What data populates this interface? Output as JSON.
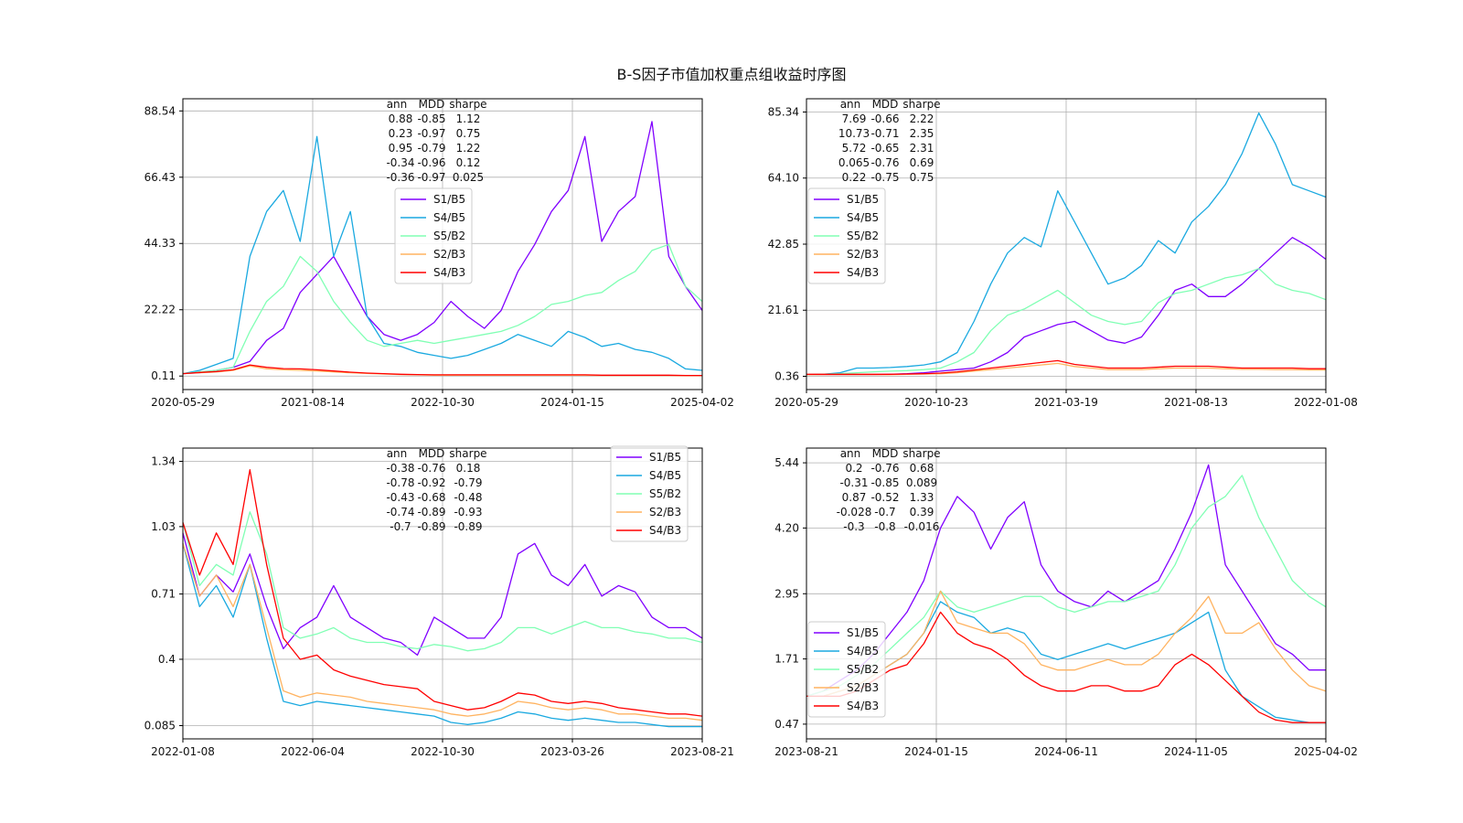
{
  "title": "B-S因子市值加权重点组收益时序图",
  "colors": {
    "S1/B5": "#8000ff",
    "S4/B5": "#1aa9e0",
    "S5/B2": "#80ffb4",
    "S2/B3": "#ffb360",
    "S4/B3": "#ff0000"
  },
  "chart_data": [
    {
      "type": "line",
      "x_ticks": [
        "2020-05-29",
        "2021-08-14",
        "2022-10-30",
        "2024-01-15",
        "2025-04-02"
      ],
      "y_ticks": [
        "0.11",
        "22.22",
        "44.33",
        "66.43",
        "88.54"
      ],
      "ylim": [
        -4.4,
        92.6
      ],
      "grid": true,
      "legend_position": "upper-center",
      "stats_header": [
        "ann",
        "MDD",
        "sharpe"
      ],
      "stats": [
        [
          "0.88",
          "-0.85",
          "1.12"
        ],
        [
          "0.23",
          "-0.97",
          "0.75"
        ],
        [
          "0.95",
          "-0.79",
          "1.22"
        ],
        [
          "-0.34",
          "-0.96",
          "0.12"
        ],
        [
          "-0.36",
          "-0.97",
          "0.025"
        ]
      ],
      "series": [
        {
          "name": "S1/B5",
          "values": [
            0.9,
            1.2,
            2,
            3,
            5,
            12,
            16,
            28,
            34,
            40,
            30,
            20,
            14,
            12,
            14,
            18,
            25,
            20,
            16,
            22,
            35,
            44,
            55,
            62,
            80,
            45,
            55,
            60,
            85,
            40,
            30,
            22
          ]
        },
        {
          "name": "S4/B5",
          "values": [
            0.9,
            2,
            4,
            6,
            40,
            55,
            62,
            45,
            80,
            40,
            55,
            20,
            11,
            10,
            8,
            7,
            6,
            7,
            9,
            11,
            14,
            12,
            10,
            15,
            13,
            10,
            11,
            9,
            8,
            6,
            2.5,
            2
          ]
        },
        {
          "name": "S5/B2",
          "values": [
            0.9,
            1.5,
            2,
            3,
            15,
            25,
            30,
            40,
            35,
            25,
            18,
            12,
            10,
            11,
            12,
            11,
            12,
            13,
            14,
            15,
            17,
            20,
            24,
            25,
            27,
            28,
            32,
            35,
            42,
            44,
            30,
            25
          ]
        },
        {
          "name": "S2/B3",
          "values": [
            0.9,
            1.2,
            1.5,
            2,
            3.5,
            2.5,
            2.2,
            2,
            1.8,
            1.5,
            1.2,
            1,
            0.8,
            0.6,
            0.5,
            0.4,
            0.4,
            0.4,
            0.4,
            0.4,
            0.4,
            0.4,
            0.4,
            0.4,
            0.4,
            0.3,
            0.3,
            0.3,
            0.3,
            0.3,
            0.2,
            0.2
          ]
        },
        {
          "name": "S4/B3",
          "values": [
            0.9,
            1.3,
            1.6,
            2.2,
            3.8,
            3,
            2.6,
            2.5,
            2.2,
            1.8,
            1.4,
            1.1,
            0.9,
            0.7,
            0.6,
            0.5,
            0.5,
            0.5,
            0.5,
            0.5,
            0.5,
            0.5,
            0.5,
            0.5,
            0.5,
            0.4,
            0.4,
            0.4,
            0.4,
            0.4,
            0.3,
            0.3
          ]
        }
      ]
    },
    {
      "type": "line",
      "x_ticks": [
        "2020-05-29",
        "2020-10-23",
        "2021-03-19",
        "2021-08-13",
        "2022-01-08"
      ],
      "y_ticks": [
        "0.36",
        "21.61",
        "42.85",
        "64.10",
        "85.34"
      ],
      "ylim": [
        -3.9,
        89.6
      ],
      "grid": true,
      "legend_position": "upper-left",
      "stats_header": [
        "ann",
        "MDD",
        "sharpe"
      ],
      "stats": [
        [
          "7.69",
          "-0.66",
          "2.22"
        ],
        [
          "10.73",
          "-0.71",
          "2.35"
        ],
        [
          "5.72",
          "-0.65",
          "2.31"
        ],
        [
          "0.065",
          "-0.76",
          "0.69"
        ],
        [
          "0.22",
          "-0.75",
          "0.75"
        ]
      ],
      "series": [
        {
          "name": "S1/B5",
          "values": [
            0.9,
            0.9,
            0.9,
            0.9,
            0.9,
            1,
            1.2,
            1.5,
            2,
            2.5,
            3,
            5,
            8,
            13,
            15,
            17,
            18,
            15,
            12,
            11,
            13,
            20,
            28,
            30,
            26,
            26,
            30,
            35,
            40,
            45,
            42,
            38
          ]
        },
        {
          "name": "S4/B5",
          "values": [
            0.9,
            1,
            1.5,
            3,
            3,
            3.2,
            3.5,
            4,
            5,
            8,
            18,
            30,
            40,
            45,
            42,
            60,
            50,
            40,
            30,
            32,
            36,
            44,
            40,
            50,
            55,
            62,
            72,
            85,
            75,
            62,
            60,
            58
          ]
        },
        {
          "name": "S5/B2",
          "values": [
            0.9,
            1,
            1.2,
            1.5,
            1.8,
            2,
            2.2,
            2.5,
            3,
            5,
            8,
            15,
            20,
            22,
            25,
            28,
            24,
            20,
            18,
            17,
            18,
            24,
            27,
            28,
            30,
            32,
            33,
            35,
            30,
            28,
            27,
            25
          ]
        },
        {
          "name": "S2/B3",
          "values": [
            0.9,
            0.9,
            0.9,
            0.9,
            0.9,
            0.9,
            1,
            1.1,
            1.2,
            1.5,
            2,
            2.5,
            3,
            3.5,
            4,
            4.5,
            3.5,
            3,
            2.5,
            2.5,
            2.5,
            2.8,
            3,
            3,
            3,
            2.8,
            2.6,
            2.6,
            2.5,
            2.5,
            2.4,
            2.4
          ]
        },
        {
          "name": "S4/B3",
          "values": [
            1,
            1,
            1,
            1,
            1,
            1,
            1.1,
            1.2,
            1.4,
            1.8,
            2.4,
            3,
            3.6,
            4.2,
            4.8,
            5.4,
            4.2,
            3.6,
            3,
            3,
            3,
            3.3,
            3.6,
            3.6,
            3.6,
            3.3,
            3,
            3,
            3,
            3,
            2.8,
            2.8
          ]
        }
      ]
    },
    {
      "type": "line",
      "x_ticks": [
        "2022-01-08",
        "2022-06-04",
        "2022-10-30",
        "2023-03-26",
        "2023-08-21"
      ],
      "y_ticks": [
        "0.085",
        "0.4",
        "0.71",
        "1.03",
        "1.34"
      ],
      "ylim": [
        0.022,
        1.403
      ],
      "grid": true,
      "legend_position": "upper-right",
      "stats_header": [
        "ann",
        "MDD",
        "sharpe"
      ],
      "stats": [
        [
          "-0.38",
          "-0.76",
          "0.18"
        ],
        [
          "-0.78",
          "-0.92",
          "-0.79"
        ],
        [
          "-0.43",
          "-0.68",
          "-0.48"
        ],
        [
          "-0.74",
          "-0.89",
          "-0.93"
        ],
        [
          "-0.7",
          "-0.89",
          "-0.89"
        ]
      ],
      "series": [
        {
          "name": "S1/B5",
          "values": [
            1,
            0.7,
            0.8,
            0.72,
            0.9,
            0.65,
            0.45,
            0.55,
            0.6,
            0.75,
            0.6,
            0.55,
            0.5,
            0.48,
            0.42,
            0.6,
            0.55,
            0.5,
            0.5,
            0.6,
            0.9,
            0.95,
            0.8,
            0.75,
            0.85,
            0.7,
            0.75,
            0.72,
            0.6,
            0.55,
            0.55,
            0.5
          ]
        },
        {
          "name": "S4/B5",
          "values": [
            0.95,
            0.65,
            0.75,
            0.6,
            0.85,
            0.5,
            0.2,
            0.18,
            0.2,
            0.19,
            0.18,
            0.17,
            0.16,
            0.15,
            0.14,
            0.13,
            0.1,
            0.09,
            0.1,
            0.12,
            0.15,
            0.14,
            0.12,
            0.11,
            0.12,
            0.11,
            0.1,
            0.1,
            0.09,
            0.08,
            0.08,
            0.08
          ]
        },
        {
          "name": "S5/B2",
          "values": [
            1.05,
            0.75,
            0.85,
            0.8,
            1.1,
            0.9,
            0.55,
            0.5,
            0.52,
            0.55,
            0.5,
            0.48,
            0.48,
            0.46,
            0.45,
            0.47,
            0.46,
            0.44,
            0.45,
            0.48,
            0.55,
            0.55,
            0.52,
            0.55,
            0.58,
            0.55,
            0.55,
            0.53,
            0.52,
            0.5,
            0.5,
            0.48
          ]
        },
        {
          "name": "S2/B3",
          "values": [
            0.95,
            0.7,
            0.8,
            0.65,
            0.85,
            0.55,
            0.25,
            0.22,
            0.24,
            0.23,
            0.22,
            0.2,
            0.19,
            0.18,
            0.17,
            0.16,
            0.14,
            0.13,
            0.14,
            0.16,
            0.2,
            0.19,
            0.17,
            0.16,
            0.17,
            0.16,
            0.14,
            0.14,
            0.13,
            0.12,
            0.12,
            0.11
          ]
        },
        {
          "name": "S4/B3",
          "values": [
            1.05,
            0.8,
            1,
            0.85,
            1.3,
            0.85,
            0.5,
            0.4,
            0.42,
            0.35,
            0.32,
            0.3,
            0.28,
            0.27,
            0.26,
            0.2,
            0.18,
            0.16,
            0.17,
            0.2,
            0.24,
            0.23,
            0.2,
            0.19,
            0.2,
            0.19,
            0.17,
            0.16,
            0.15,
            0.14,
            0.14,
            0.13
          ]
        }
      ]
    },
    {
      "type": "line",
      "x_ticks": [
        "2023-08-21",
        "2024-01-15",
        "2024-06-11",
        "2024-11-05",
        "2025-04-02"
      ],
      "y_ticks": [
        "0.47",
        "1.71",
        "2.95",
        "4.20",
        "5.44"
      ],
      "ylim": [
        0.19,
        5.72
      ],
      "grid": true,
      "legend_position": "lower-left",
      "stats_header": [
        "ann",
        "MDD",
        "sharpe"
      ],
      "stats": [
        [
          "0.2",
          "-0.76",
          "0.68"
        ],
        [
          "-0.31",
          "-0.85",
          "0.089"
        ],
        [
          "0.87",
          "-0.52",
          "1.33"
        ],
        [
          "-0.028",
          "-0.7",
          "0.39"
        ],
        [
          "-0.3",
          "-0.8",
          "-0.016"
        ]
      ],
      "series": [
        {
          "name": "S1/B5",
          "values": [
            1,
            1.1,
            1.3,
            1.5,
            1.8,
            2.2,
            2.6,
            3.2,
            4.2,
            4.8,
            4.5,
            3.8,
            4.4,
            4.7,
            3.5,
            3,
            2.8,
            2.7,
            3,
            2.8,
            3,
            3.2,
            3.8,
            4.5,
            5.4,
            3.5,
            3,
            2.5,
            2,
            1.8,
            1.5,
            1.5
          ]
        },
        {
          "name": "S4/B5",
          "values": [
            1,
            1,
            1.1,
            1.2,
            1.4,
            1.6,
            1.8,
            2.2,
            2.8,
            2.6,
            2.5,
            2.2,
            2.3,
            2.2,
            1.8,
            1.7,
            1.8,
            1.9,
            2,
            1.9,
            2,
            2.1,
            2.2,
            2.4,
            2.6,
            1.5,
            1,
            0.8,
            0.6,
            0.55,
            0.5,
            0.5
          ]
        },
        {
          "name": "S5/B2",
          "values": [
            1,
            1.1,
            1.2,
            1.4,
            1.6,
            1.9,
            2.2,
            2.5,
            3,
            2.7,
            2.6,
            2.7,
            2.8,
            2.9,
            2.9,
            2.7,
            2.6,
            2.7,
            2.8,
            2.8,
            2.9,
            3,
            3.5,
            4.2,
            4.6,
            4.8,
            5.2,
            4.4,
            3.8,
            3.2,
            2.9,
            2.7
          ]
        },
        {
          "name": "S2/B3",
          "values": [
            1,
            1,
            1.1,
            1.2,
            1.4,
            1.6,
            1.8,
            2.2,
            3,
            2.4,
            2.3,
            2.2,
            2.2,
            2,
            1.6,
            1.5,
            1.5,
            1.6,
            1.7,
            1.6,
            1.6,
            1.8,
            2.2,
            2.5,
            2.9,
            2.2,
            2.2,
            2.4,
            1.9,
            1.5,
            1.2,
            1.1
          ]
        },
        {
          "name": "S4/B3",
          "values": [
            1,
            1,
            1,
            1.1,
            1.3,
            1.5,
            1.6,
            2,
            2.6,
            2.2,
            2,
            1.9,
            1.7,
            1.4,
            1.2,
            1.1,
            1.1,
            1.2,
            1.2,
            1.1,
            1.1,
            1.2,
            1.6,
            1.8,
            1.6,
            1.3,
            1,
            0.7,
            0.55,
            0.5,
            0.5,
            0.5
          ]
        }
      ]
    }
  ]
}
